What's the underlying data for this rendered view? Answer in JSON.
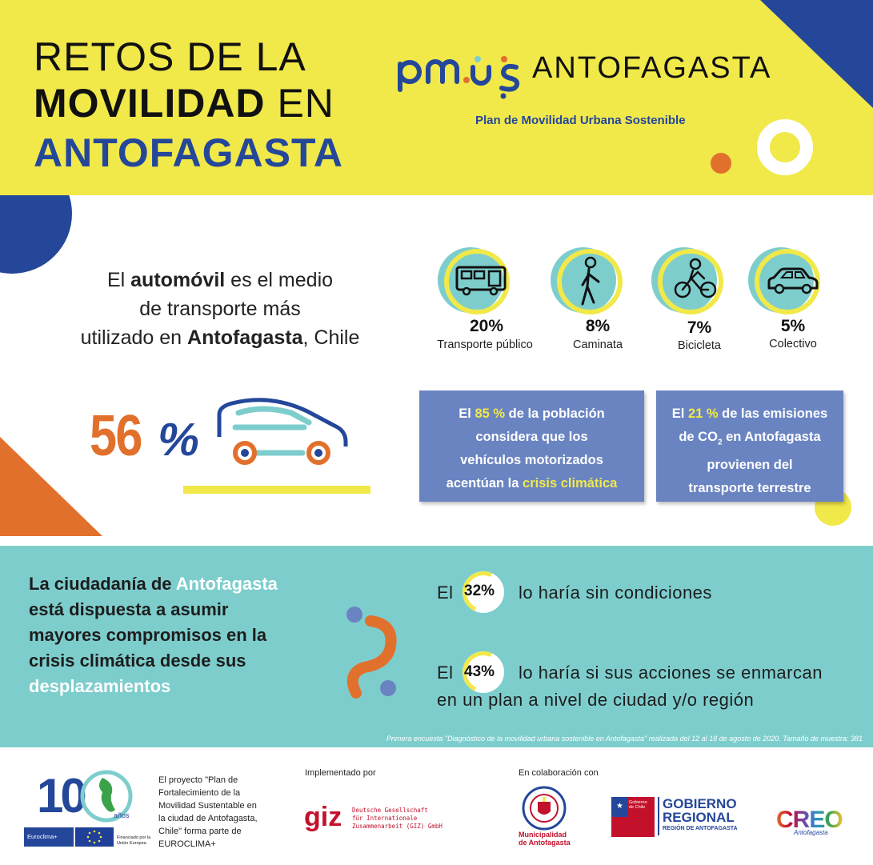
{
  "header": {
    "title_line1": "RETOS DE LA",
    "title_line2_bold": "MOVILIDAD",
    "title_line2_rest": " EN",
    "title_line3": "ANTOFAGASTA",
    "logo_pmus": "pmus",
    "logo_city": "ANTOFAGASTA",
    "logo_subtitle": "Plan de Movilidad Urbana Sostenible"
  },
  "intro": {
    "part1": "El ",
    "bold1": "automóvil",
    "part2": " es el medio",
    "line2": "de transporte más",
    "part3": "utilizado en ",
    "bold2": "Antofagasta",
    "part4": ", Chile"
  },
  "modes": [
    {
      "icon": "bus-icon",
      "percent": "20%",
      "label": "Transporte público"
    },
    {
      "icon": "pedestrian-icon",
      "percent": "8%",
      "label": "Caminata"
    },
    {
      "icon": "bicycle-icon",
      "percent": "7%",
      "label": "Bicicleta"
    },
    {
      "icon": "car-icon",
      "percent": "5%",
      "label": "Colectivo"
    }
  ],
  "car_stat": {
    "value": "56",
    "sign": "%"
  },
  "box1": {
    "a": "El ",
    "b": "85 %",
    "c": " de la población",
    "line2": "considera que los",
    "line3": "vehículos motorizados",
    "d": "acentúan la ",
    "e": "crisis climática"
  },
  "box2": {
    "a": "El ",
    "b": "21 %",
    "c": " de las emisiones",
    "d": "de CO",
    "sub": "2",
    "e": " en Antofagasta",
    "line3": "provienen del",
    "line4": "transporte terrestre"
  },
  "citizens": {
    "a": "La ciudadanía de ",
    "b": "Antofagasta",
    "line2": "está dispuesta a asumir",
    "line3": "mayores compromisos en la",
    "line4": "crisis climática desde sus",
    "line5": "desplazamientos"
  },
  "stat1": {
    "prefix": "El",
    "value": "32%",
    "text": "lo haría sin condiciones"
  },
  "stat2": {
    "prefix": "El",
    "value": "43%",
    "text": "lo haría si sus acciones se enmarcan",
    "text2": "en un plan a nivel de ciudad y/o región"
  },
  "footnote": "Primera encuesta \"Diagnóstico de la movilidad urbana sostenible en Antofagasta\" realizada del 12 al 18 de agosto de 2020. Tamaño de muestra: 381",
  "footer": {
    "ten": "10",
    "anos": "años",
    "euroclima": "Euroclima+",
    "financiado": "Financiado por la Unión Europea",
    "project_text": [
      "El proyecto \"Plan de",
      "Fortalecimiento de la",
      "Movilidad Sustentable en",
      "la ciudad de Antofagasta,",
      "Chile\" forma parte de",
      "EUROCLIMA+"
    ],
    "implementado": "Implementado por",
    "giz": "giz",
    "giz_text": [
      "Deutsche Gesellschaft",
      "für Internationale",
      "Zusammenarbeit (GIZ) GmbH"
    ],
    "colaboracion": "En colaboración con",
    "municipalidad": "Municipalidad",
    "muni_city": "de Antofagasta",
    "gob_chile": "Gobierno de Chile",
    "gob_regional": "GOBIERNO",
    "gob_regional2": "REGIONAL",
    "gob_region": "REGIÓN DE ANTOFAGASTA",
    "creo": "CREO",
    "creo_city": "Antofagasta"
  },
  "colors": {
    "yellow": "#f1e84a",
    "navy": "#24479a",
    "orange": "#e2702d",
    "teal": "#7ecdcd",
    "box_blue": "#6a84c2"
  }
}
